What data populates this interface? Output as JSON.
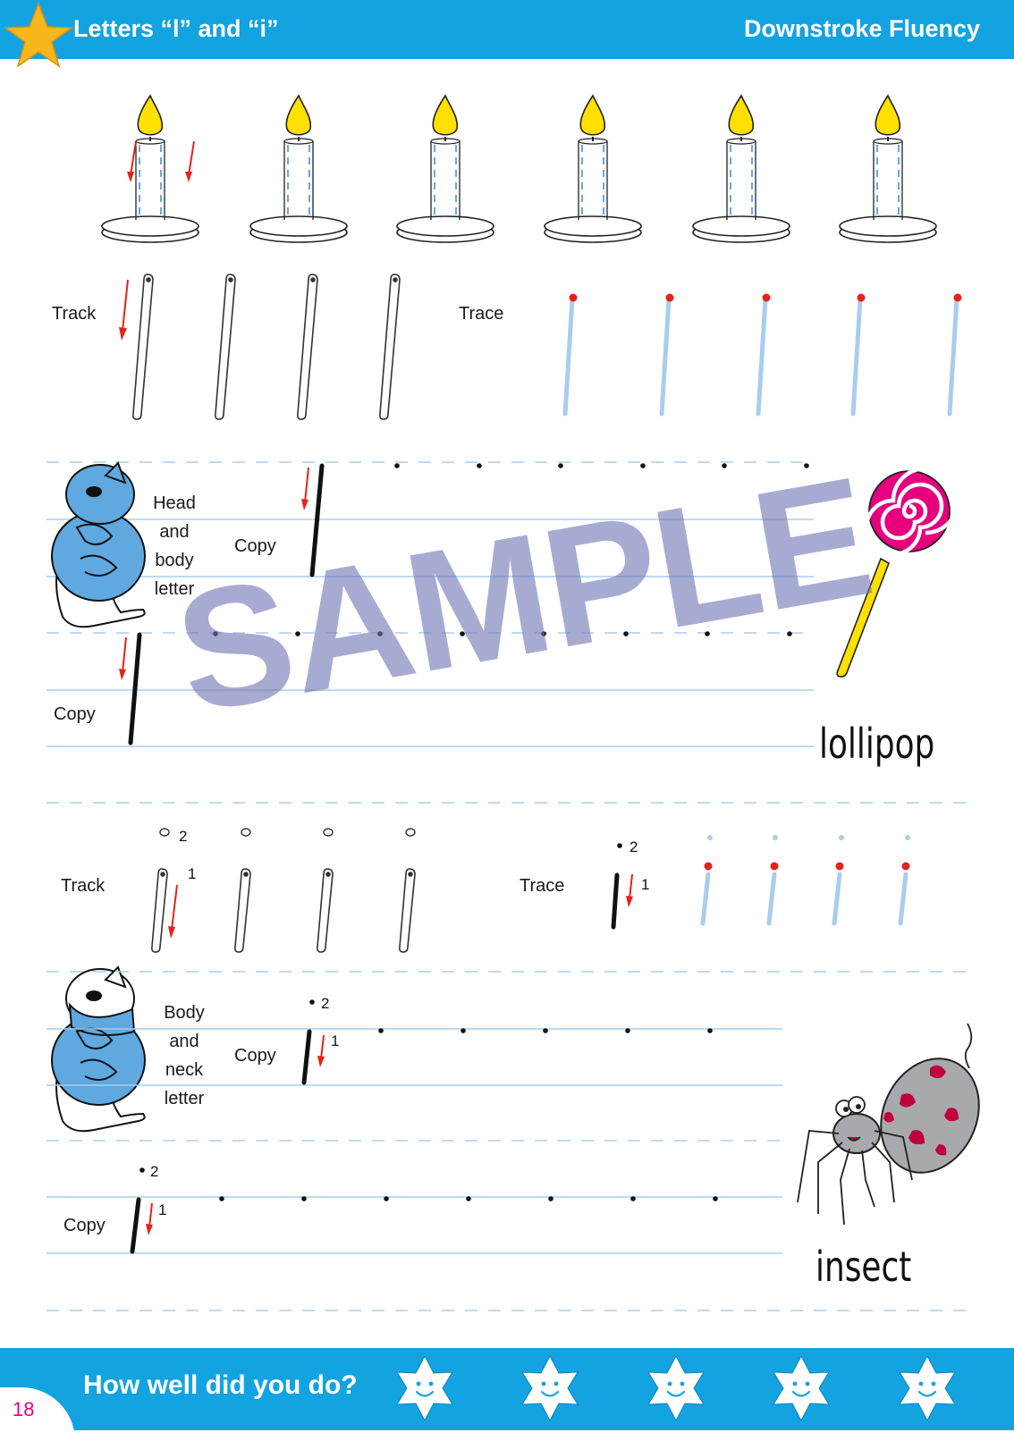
{
  "header": {
    "title": "Letters “l” and “i”",
    "subtitle": "Downstroke Fluency"
  },
  "section1": {
    "track_label": "Track",
    "trace_label": "Trace",
    "mascot_label": [
      "Head",
      "and",
      "body",
      "letter"
    ],
    "copy_label_1": "Copy",
    "copy_label_2": "Copy",
    "example_word": "lollipop"
  },
  "section2": {
    "track_label": "Track",
    "trace_label": "Trace",
    "stroke_1": "1",
    "stroke_2": "2",
    "mascot_label": [
      "Body",
      "and",
      "neck",
      "letter"
    ],
    "copy_label_1": "Copy",
    "copy_label_2": "Copy",
    "example_word": "insect"
  },
  "watermark": "SAMPLE",
  "footer": {
    "question": "How well did you do?",
    "page_number": "18"
  },
  "colors": {
    "brand_blue": "#13a3e0",
    "star_yellow": "#f6b81d",
    "guide_blue": "#a9cdef",
    "arrow_red": "#e2231a",
    "mascot_blue": "#5fa8e0",
    "lollipop_pink": "#e6007e"
  }
}
